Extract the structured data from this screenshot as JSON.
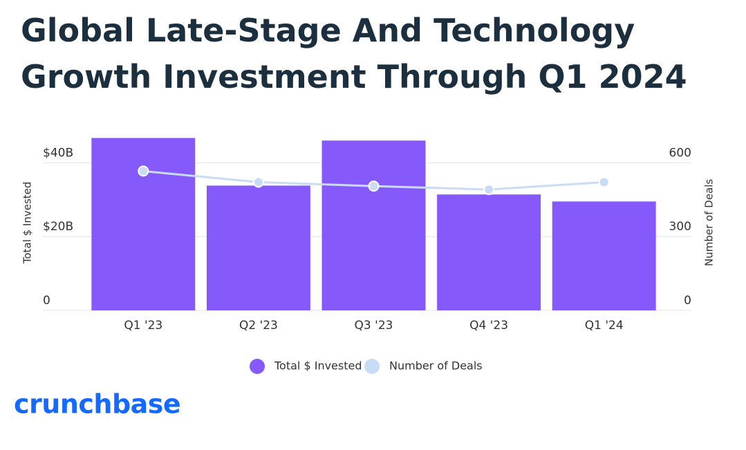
{
  "chart_data": {
    "type": "bar_line",
    "title": [
      "Global Late-Stage And Technology",
      "Growth Investment Through Q1 2024"
    ],
    "categories": [
      "Q1 '23",
      "Q2 '23",
      "Q3 '23",
      "Q4 '23",
      "Q1 '24"
    ],
    "series": [
      {
        "name": "Total $ Invested",
        "color": "#8659fb",
        "type": "bar",
        "values": [
          46.7,
          33.8,
          46.0,
          31.4,
          29.5
        ]
      },
      {
        "name": "Number of Deals",
        "color": "#c8dcf6",
        "type": "line",
        "axis": "y2",
        "values": [
          566,
          521,
          505,
          491,
          521
        ]
      }
    ],
    "ylabel": "Total $ Invested",
    "y2label": "Number of Deals",
    "ylim": [
      0,
      47
    ],
    "yticks": [
      0,
      {
        "value": 20,
        "label": "$20B"
      },
      {
        "value": 40,
        "label": "$40B"
      }
    ],
    "y2lim": [
      0,
      705
    ],
    "y2ticks": [
      0,
      300,
      600
    ],
    "grid": true,
    "legend": "bottom",
    "brand": "crunchbase"
  }
}
